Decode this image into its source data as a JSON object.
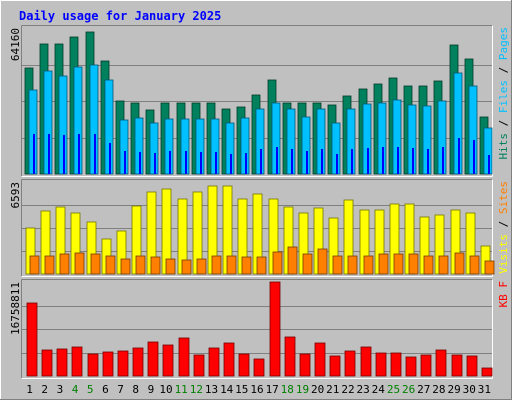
{
  "chart_data": {
    "type": "bar",
    "title": "Daily usage for January 2025",
    "categories": [
      "1",
      "2",
      "3",
      "4",
      "5",
      "6",
      "7",
      "8",
      "9",
      "10",
      "11",
      "12",
      "13",
      "14",
      "15",
      "16",
      "17",
      "18",
      "19",
      "20",
      "21",
      "22",
      "23",
      "24",
      "25",
      "26",
      "27",
      "28",
      "29",
      "30",
      "31"
    ],
    "weekend_days": [
      "4",
      "5",
      "11",
      "12",
      "18",
      "19",
      "25",
      "26"
    ],
    "colors": {
      "hits": "#00805c",
      "files": "#00c0ff",
      "pages": "#0000ff",
      "visits": "#ffff00",
      "sites": "#ff8000",
      "kbytes": "#ff0000",
      "title": "#0000ff",
      "weekend_label": "#008000"
    },
    "panels": [
      {
        "id": "top",
        "ymax_label": "64160",
        "ylim": [
          0,
          64160
        ],
        "legend": [
          {
            "text": "Hits",
            "color": "#00805c"
          },
          {
            "text": " / ",
            "color": "#000000"
          },
          {
            "text": "Files",
            "color": "#00c0ff"
          },
          {
            "text": " / ",
            "color": "#000000"
          },
          {
            "text": "Pages",
            "color": "#00c0ff"
          }
        ],
        "series": [
          {
            "name": "Hits",
            "values": [
              46800,
              57200,
              57200,
              60000,
              62500,
              49600,
              32000,
              31400,
              28200,
              31400,
              31000,
              31000,
              31400,
              28700,
              29400,
              34700,
              41300,
              31400,
              31400,
              31000,
              30300,
              34400,
              37500,
              39700,
              42100,
              38500,
              38500,
              40900,
              56900,
              50400,
              25000
            ]
          },
          {
            "name": "Files",
            "values": [
              36800,
              45400,
              42900,
              46900,
              48000,
              41300,
              23800,
              24600,
              22500,
              24200,
              24200,
              24200,
              24200,
              22500,
              24600,
              28400,
              31000,
              28400,
              25200,
              28400,
              22500,
              28400,
              30900,
              31400,
              32600,
              30300,
              30000,
              32200,
              44400,
              38800,
              20200
            ]
          },
          {
            "name": "Pages",
            "values": [
              17500,
              17500,
              17000,
              17500,
              17500,
              13800,
              10000,
              9600,
              9100,
              10100,
              10000,
              9600,
              9600,
              9000,
              9400,
              11000,
              12000,
              11000,
              10000,
              11000,
              9000,
              11000,
              11500,
              12000,
              12000,
              11500,
              11000,
              12000,
              16000,
              15000,
              8200
            ]
          }
        ]
      },
      {
        "id": "middle",
        "ymax_label": "6593",
        "ylim": [
          0,
          6593
        ],
        "legend": [
          {
            "text": "Visits",
            "color": "#ffff00"
          },
          {
            "text": " / ",
            "color": "#000000"
          },
          {
            "text": "Sites",
            "color": "#ff8000"
          }
        ],
        "series": [
          {
            "name": "Visits",
            "values": [
              3300,
              4500,
              4800,
              4400,
              3700,
              2500,
              3100,
              4900,
              5900,
              6100,
              5400,
              5900,
              6300,
              6300,
              5400,
              5700,
              5400,
              4800,
              4400,
              4700,
              4000,
              5300,
              4600,
              4600,
              5000,
              5000,
              4100,
              4200,
              4600,
              4400,
              2000
            ]
          },
          {
            "name": "Sites",
            "values": [
              1300,
              1300,
              1400,
              1500,
              1400,
              1300,
              1100,
              1300,
              1200,
              1100,
              1000,
              1100,
              1300,
              1300,
              1200,
              1200,
              1600,
              1900,
              1400,
              1800,
              1300,
              1300,
              1300,
              1400,
              1400,
              1400,
              1300,
              1300,
              1500,
              1300,
              900
            ]
          }
        ]
      },
      {
        "id": "bottom",
        "ymax_label": "16758811",
        "ylim": [
          0,
          16758811
        ],
        "legend": [
          {
            "text": "KB F",
            "color": "#ff0000"
          }
        ],
        "series": [
          {
            "name": "KB F",
            "values": [
              13000000,
              4700000,
              4800000,
              5100000,
              4000000,
              4200000,
              4400000,
              5000000,
              6100000,
              5600000,
              6800000,
              3800000,
              5000000,
              5800000,
              3900000,
              3100000,
              16758811,
              7000000,
              3900000,
              5800000,
              3600000,
              4400000,
              5200000,
              4100000,
              4100000,
              3300000,
              3700000,
              4700000,
              3800000,
              3600000,
              1500000
            ]
          }
        ]
      }
    ]
  }
}
